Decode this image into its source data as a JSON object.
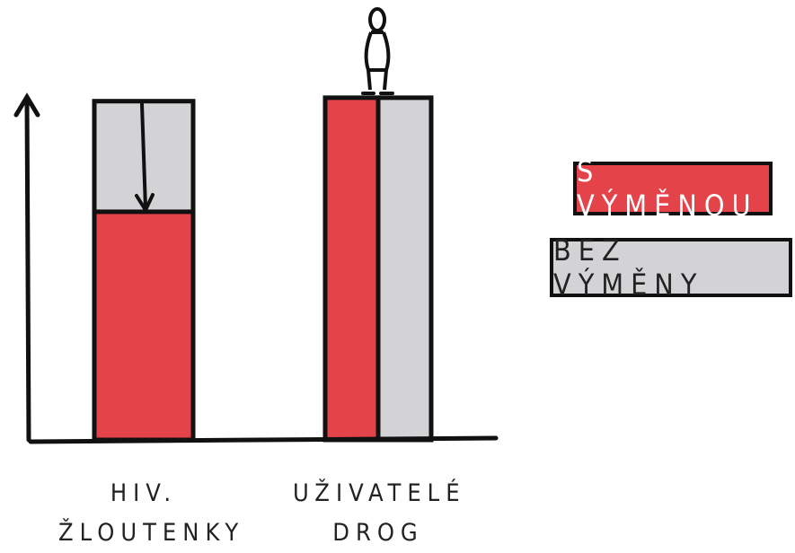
{
  "chart_data": {
    "type": "bar",
    "categories": [
      "HIV. ŽLOUTENKY",
      "UŽIVATELÉ DROG"
    ],
    "series": [
      {
        "name": "S VÝMĚNOU",
        "color": "#e5434a",
        "values": [
          66,
          99
        ]
      },
      {
        "name": "BEZ VÝMĚNY",
        "color": "#d3d3d6",
        "values": [
          98,
          99
        ]
      }
    ],
    "ylim": [
      0,
      100
    ]
  }
}
